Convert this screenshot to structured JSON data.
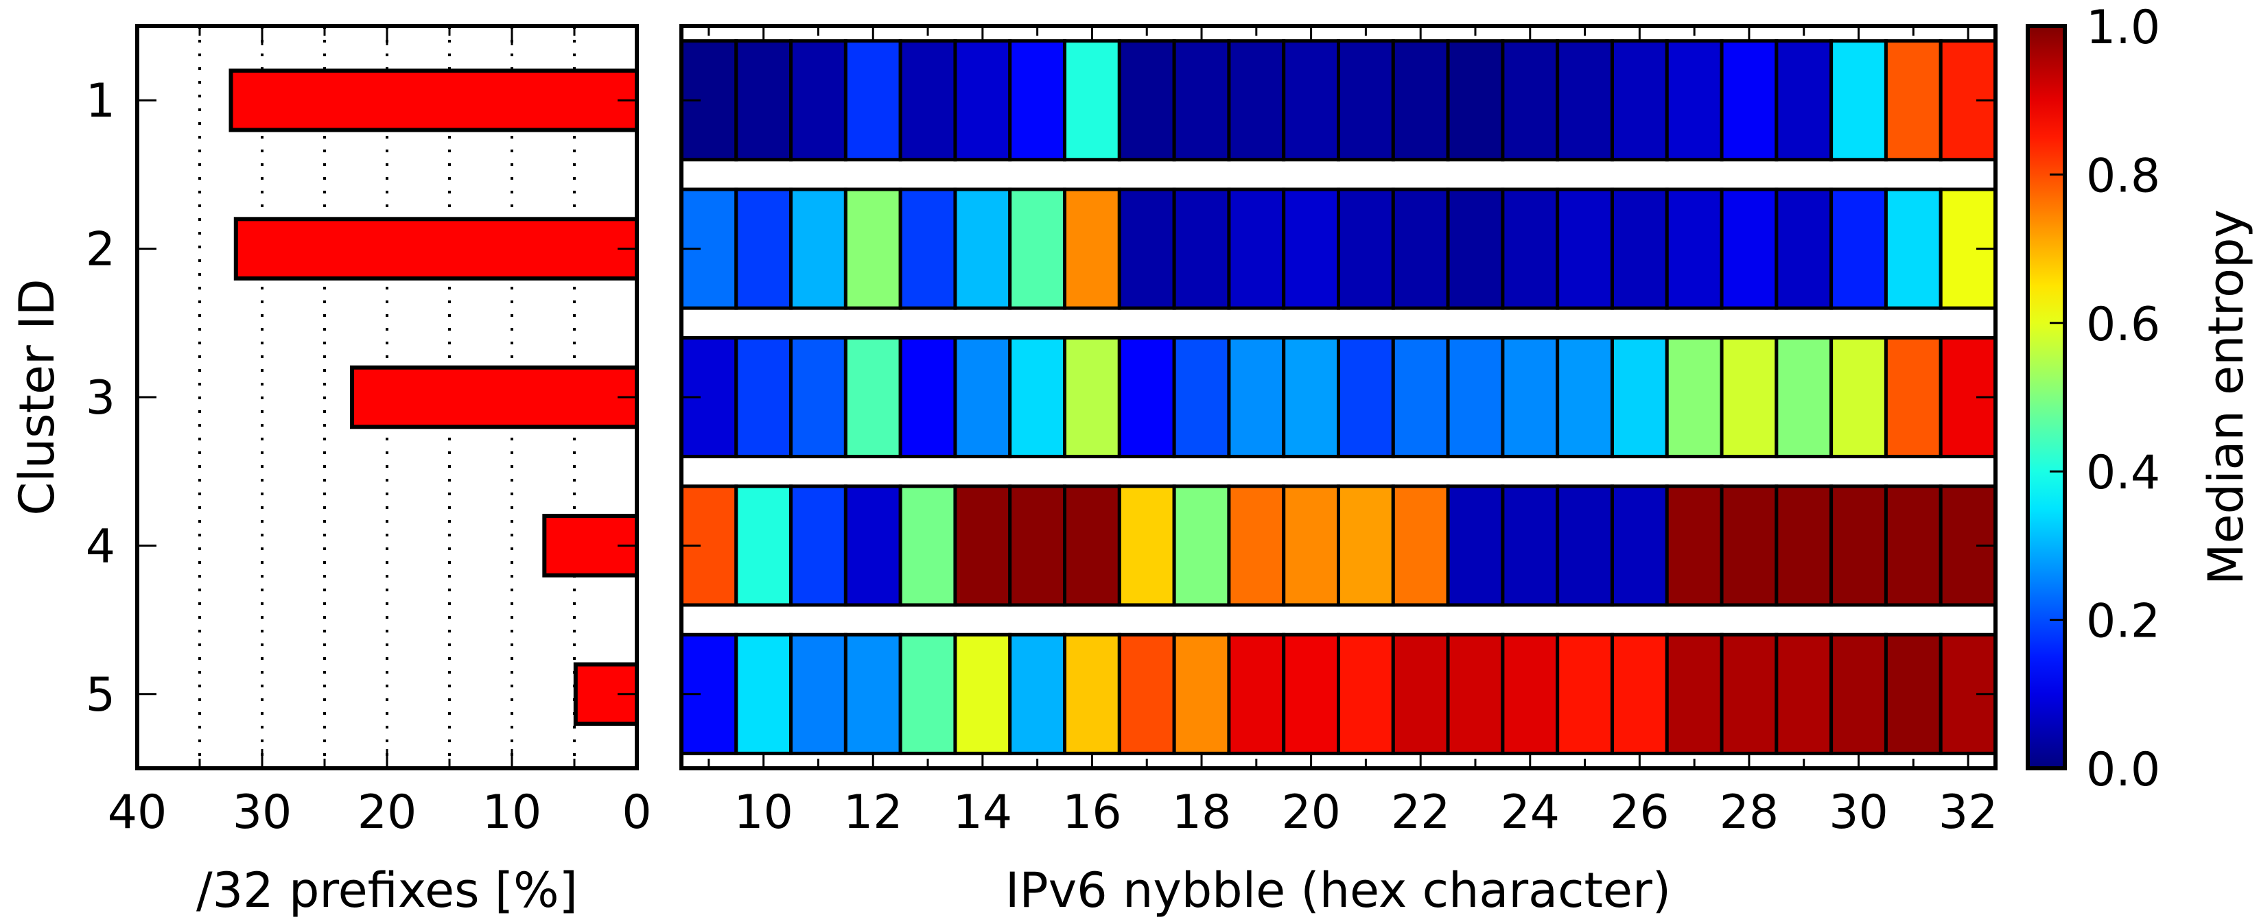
{
  "chart_data": [
    {
      "type": "bar",
      "orientation": "horizontal",
      "categories": [
        "1",
        "2",
        "3",
        "4",
        "5"
      ],
      "values": [
        32.5,
        32.1,
        22.8,
        7.4,
        4.9
      ],
      "xlabel": "/32 prefixes [%]",
      "ylabel": "Cluster ID",
      "xlim": [
        40,
        0
      ],
      "xticks": [
        "40",
        "30",
        "20",
        "10",
        "0"
      ],
      "xtick_values": [
        40,
        30,
        20,
        10,
        0
      ],
      "grid": "vertical dotted every 5",
      "bar_color": "#ff0000"
    },
    {
      "type": "heatmap",
      "x": [
        9,
        10,
        11,
        12,
        13,
        14,
        15,
        16,
        17,
        18,
        19,
        20,
        21,
        22,
        23,
        24,
        25,
        26,
        27,
        28,
        29,
        30,
        31,
        32
      ],
      "xticks": [
        "10",
        "12",
        "14",
        "16",
        "18",
        "20",
        "22",
        "24",
        "26",
        "28",
        "30",
        "32"
      ],
      "xtick_values": [
        10,
        12,
        14,
        16,
        18,
        20,
        22,
        24,
        26,
        28,
        30,
        32
      ],
      "xlabel": "IPv6 nybble (hex character)",
      "rows": [
        "1",
        "2",
        "3",
        "4",
        "5"
      ],
      "colormap": "jet",
      "values": [
        [
          0.01,
          0.02,
          0.04,
          0.175,
          0.05,
          0.08,
          0.13,
          0.405,
          0.02,
          0.03,
          0.03,
          0.04,
          0.03,
          0.02,
          0.01,
          0.03,
          0.04,
          0.06,
          0.08,
          0.12,
          0.07,
          0.345,
          0.79,
          0.845
        ],
        [
          0.235,
          0.185,
          0.3,
          0.51,
          0.185,
          0.31,
          0.455,
          0.74,
          0.04,
          0.05,
          0.07,
          0.08,
          0.05,
          0.04,
          0.03,
          0.05,
          0.07,
          0.06,
          0.08,
          0.11,
          0.07,
          0.155,
          0.34,
          0.61
        ],
        [
          0.0875,
          0.185,
          0.21,
          0.45,
          0.125,
          0.26,
          0.34,
          0.555,
          0.125,
          0.2,
          0.265,
          0.28,
          0.19,
          0.235,
          0.24,
          0.26,
          0.275,
          0.33,
          0.51,
          0.58,
          0.505,
          0.58,
          0.79,
          0.89
        ],
        [
          0.8,
          0.405,
          0.185,
          0.08,
          0.49,
          0.99,
          0.99,
          0.99,
          0.67,
          0.5,
          0.765,
          0.74,
          0.72,
          0.76,
          0.055,
          0.055,
          0.055,
          0.06,
          0.985,
          0.99,
          0.99,
          0.99,
          0.99,
          0.99
        ],
        [
          0.13,
          0.345,
          0.25,
          0.265,
          0.46,
          0.6,
          0.3,
          0.68,
          0.8,
          0.74,
          0.8975,
          0.89,
          0.855,
          0.925,
          0.92,
          0.905,
          0.855,
          0.855,
          0.955,
          0.955,
          0.955,
          0.97,
          0.985,
          0.96
        ]
      ],
      "colorbar": {
        "label": "Median entropy",
        "range": [
          0,
          1
        ],
        "ticks": [
          "0.0",
          "0.2",
          "0.4",
          "0.6",
          "0.8",
          "1.0"
        ],
        "tick_values": [
          0,
          0.2,
          0.4,
          0.6,
          0.8,
          1.0
        ]
      }
    }
  ]
}
